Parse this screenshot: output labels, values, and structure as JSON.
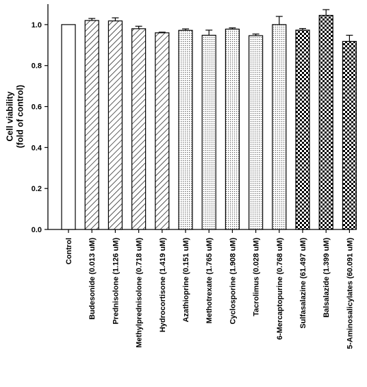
{
  "chart_data": {
    "type": "bar",
    "title": "",
    "xlabel": "",
    "ylabel": [
      "Cell viability",
      "(fold of control)"
    ],
    "ylim": [
      0.0,
      1.1
    ],
    "yticks": [
      "0.0",
      "0.2",
      "0.4",
      "0.6",
      "0.8",
      "1.0"
    ],
    "grid": false,
    "legend": "none",
    "categories": [
      "Control",
      "Budesonide (0.013 uM)",
      "Prednisolone (1.126 uM)",
      "Methylprednisolone (0.718 uM)",
      "Hydrocortisone (1.419 uM)",
      "Azathioprine (0.151 uM)",
      "Methotrexate (1.765 uM)",
      "Cyclosporine (1.908 uM)",
      "Tacrolimus (0.028 uM)",
      "6-Mercaptopurine (0.768 uM)",
      "Sulfasalazine (61.497 uM)",
      "Balsalazide (1.399 uM)",
      "5-Aminosalicylates (60.091 uM)"
    ],
    "values": [
      1.0,
      1.02,
      1.018,
      0.98,
      0.96,
      0.972,
      0.948,
      0.978,
      0.946,
      1.0,
      0.973,
      1.045,
      0.918
    ],
    "errors": [
      0.0,
      0.01,
      0.015,
      0.012,
      0.003,
      0.007,
      0.025,
      0.006,
      0.008,
      0.04,
      0.008,
      0.028,
      0.03
    ],
    "fills": [
      "white",
      "hatch",
      "hatch",
      "hatch",
      "hatch",
      "dots",
      "dots",
      "dots",
      "dots",
      "dots",
      "checker",
      "checker",
      "checker"
    ]
  }
}
